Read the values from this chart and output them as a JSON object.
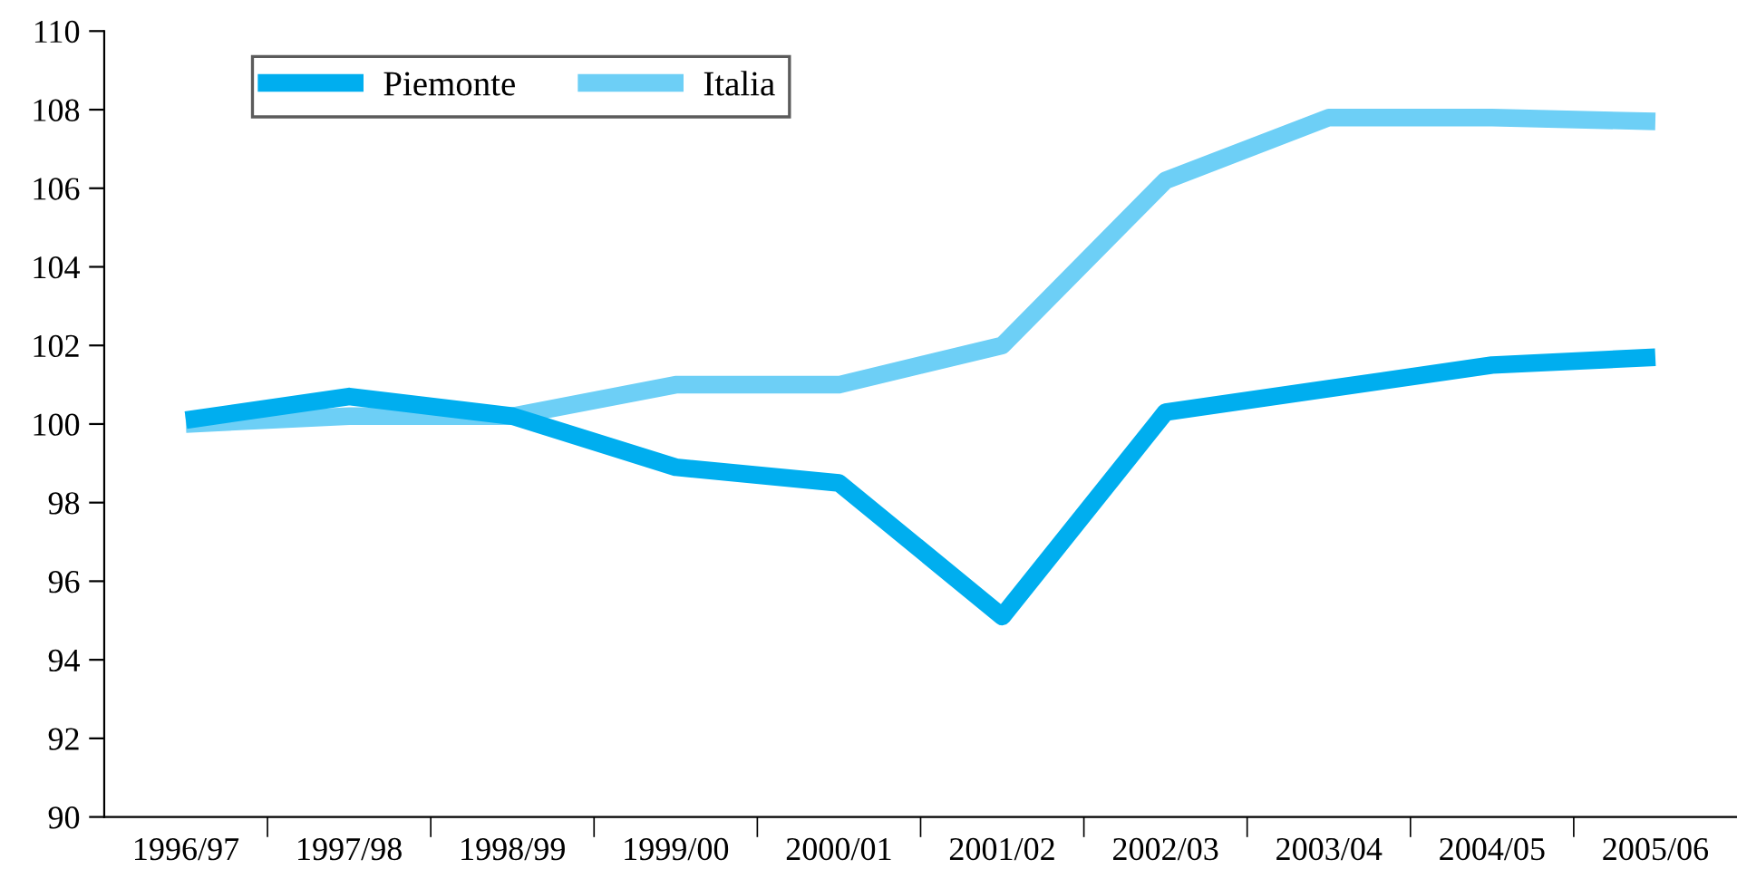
{
  "chart_data": {
    "type": "line",
    "categories": [
      "1996/97",
      "1997/98",
      "1998/99",
      "1999/00",
      "2000/01",
      "2001/02",
      "2002/03",
      "2003/04",
      "2004/05",
      "2005/06"
    ],
    "series": [
      {
        "name": "Piemonte",
        "color": "#00aeef",
        "values": [
          100.1,
          100.7,
          100.2,
          98.9,
          98.5,
          95.1,
          100.3,
          100.9,
          101.5,
          101.7
        ]
      },
      {
        "name": "Italia",
        "color": "#6dcff6",
        "values": [
          100.0,
          100.2,
          100.2,
          101.0,
          101.0,
          102.0,
          106.2,
          107.8,
          107.8,
          107.7
        ]
      }
    ],
    "ylim": [
      90,
      110
    ],
    "yticks": [
      90,
      92,
      94,
      96,
      98,
      100,
      102,
      104,
      106,
      108,
      110
    ],
    "grid": false,
    "legend": "top left",
    "marker": "none",
    "line_style": "solid"
  }
}
